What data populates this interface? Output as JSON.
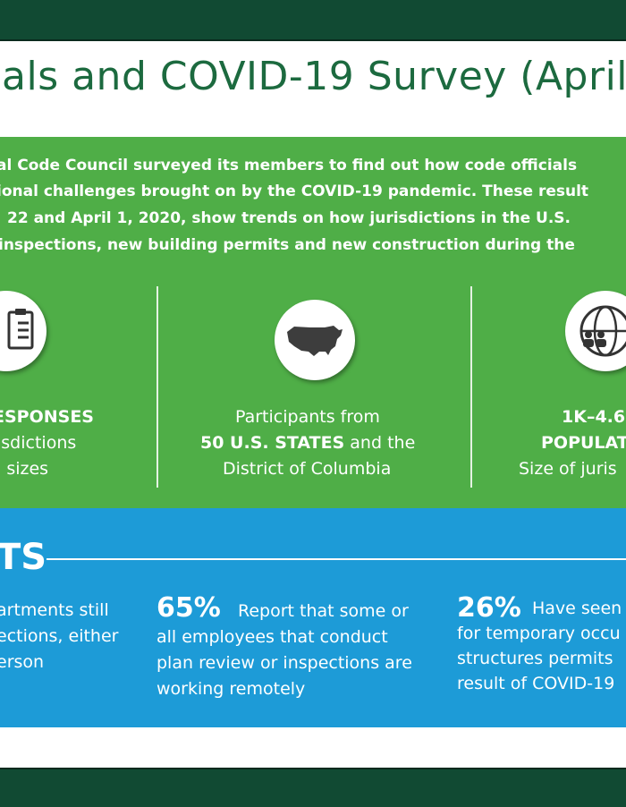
{
  "header": {
    "title": "als and COVID-19 Survey (April 2"
  },
  "intro": {
    "lines": [
      "al Code Council surveyed its members to find out how code officials",
      "ional challenges brought on by the COVID-19 pandemic. These result",
      "22 and April 1, 2020, show trends on how jurisdictions in the U.S.",
      "inspections, new building permits and new construction during the"
    ]
  },
  "stats": {
    "left": {
      "icon": "clipboard-icon",
      "line1": "ESPONSES",
      "line2": "isdictions",
      "line3": "l sizes"
    },
    "middle": {
      "icon": "us-map-icon",
      "line1": "Participants from",
      "line2_bold": "50 U.S. STATES",
      "line2_rest": " and the",
      "line3": "District of Columbia"
    },
    "right": {
      "icon": "globe-people-icon",
      "line1": "1K–4.6",
      "line2": "POPULAT",
      "line3": "Size of juris"
    }
  },
  "keys": {
    "heading": "TS",
    "left": {
      "lines": [
        "artments still",
        "ections, either",
        "erson"
      ]
    },
    "middle": {
      "percent": "65%",
      "line1": "Report that some or",
      "line2": "all employees that conduct",
      "line3": "plan review or inspections are",
      "line4": "working remotely"
    },
    "right": {
      "percent": "26%",
      "line1": "Have seen",
      "line2": "for temporary occu",
      "line3": "structures permits",
      "line4": "result of COVID-19"
    }
  },
  "colors": {
    "frame": "#114a33",
    "title_green": "#1c6a3f",
    "band_green": "#4fae47",
    "band_blue": "#1d9bd7"
  }
}
